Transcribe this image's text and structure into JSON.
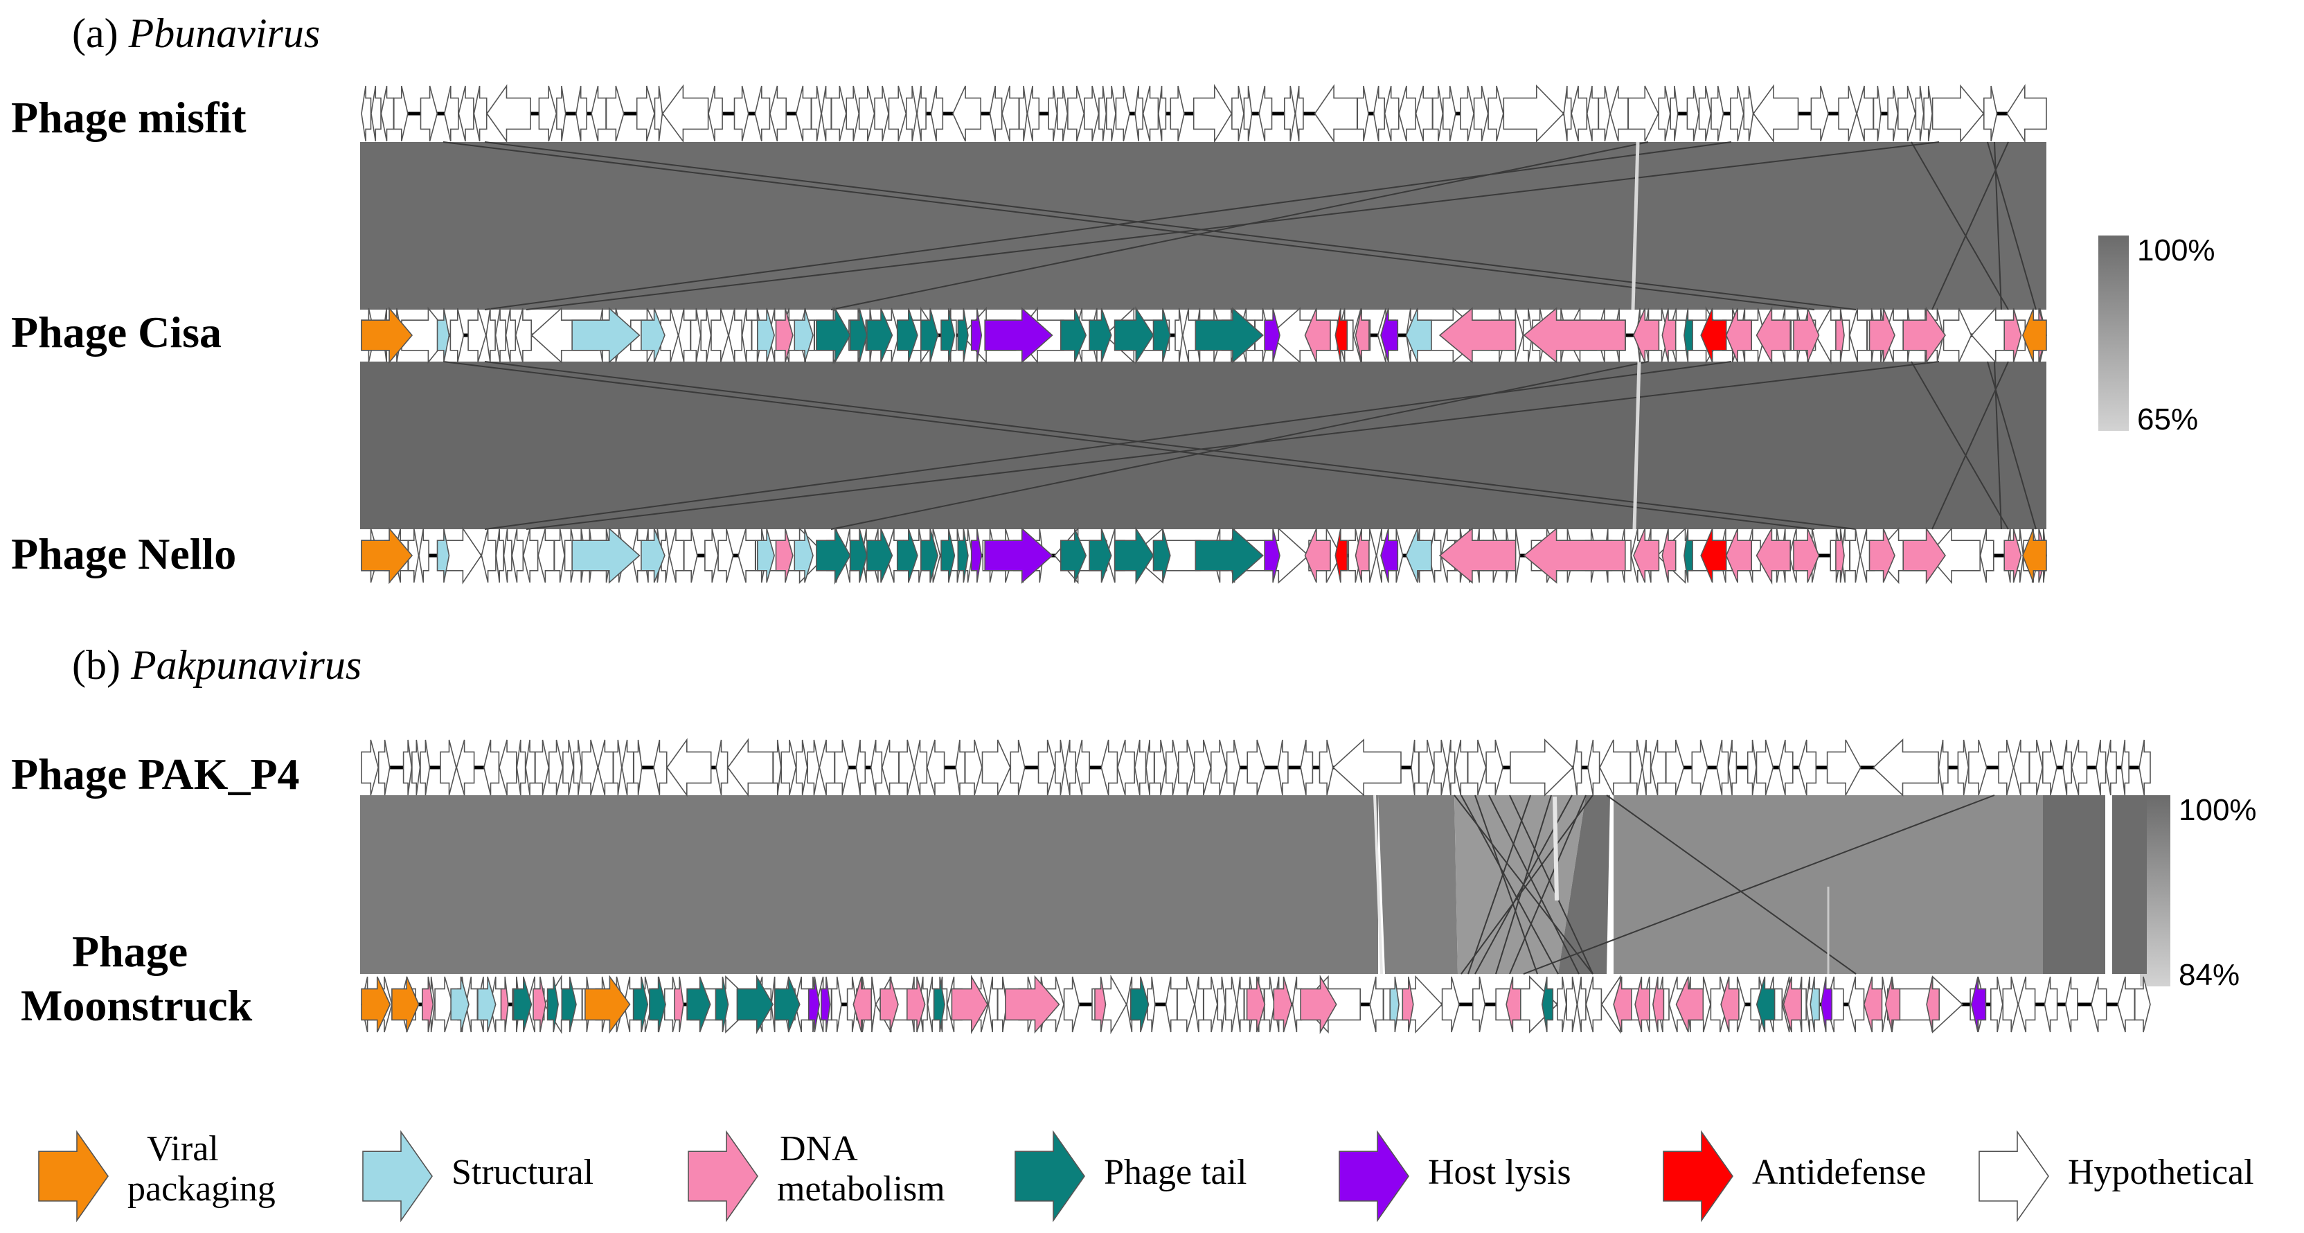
{
  "panels": [
    {
      "letter": "(a)",
      "genus": "Pbunavirus",
      "phages": [
        "Phage misfit",
        "Phage Cisa",
        "Phage Nello"
      ],
      "scale": {
        "max_label": "100%",
        "min_label": "65%"
      }
    },
    {
      "letter": "(b)",
      "genus": "Pakpunavirus",
      "phages": [
        "Phage PAK_P4",
        "Phage",
        "Moonstruck"
      ],
      "scale": {
        "max_label": "100%",
        "min_label": "84%"
      }
    }
  ],
  "legend": [
    {
      "key": "viral",
      "label": "Viral packaging",
      "line1": "Viral",
      "line2": "packaging",
      "color": "#f58a0c"
    },
    {
      "key": "struct",
      "label": "Structural",
      "line1": "Structural",
      "color": "#9fd9e6"
    },
    {
      "key": "dna",
      "label": "DNA metabolism",
      "line1": "DNA",
      "line2": "metabolism",
      "color": "#f788b2"
    },
    {
      "key": "tail",
      "label": "Phage tail",
      "line1": "Phage tail",
      "color": "#0b7f7b"
    },
    {
      "key": "lysis",
      "label": "Host lysis",
      "line1": "Host lysis",
      "color": "#8f00f2"
    },
    {
      "key": "anti",
      "label": "Antidefense",
      "line1": "Antidefense",
      "color": "#ff0000"
    },
    {
      "key": "hypo",
      "label": "Hypothetical",
      "line1": "Hypothetical",
      "color": "#ffffff"
    }
  ],
  "colors": {
    "similarity_high": "#6b6b6b",
    "similarity_low": "#d3d3d3",
    "outline": "#555555"
  }
}
